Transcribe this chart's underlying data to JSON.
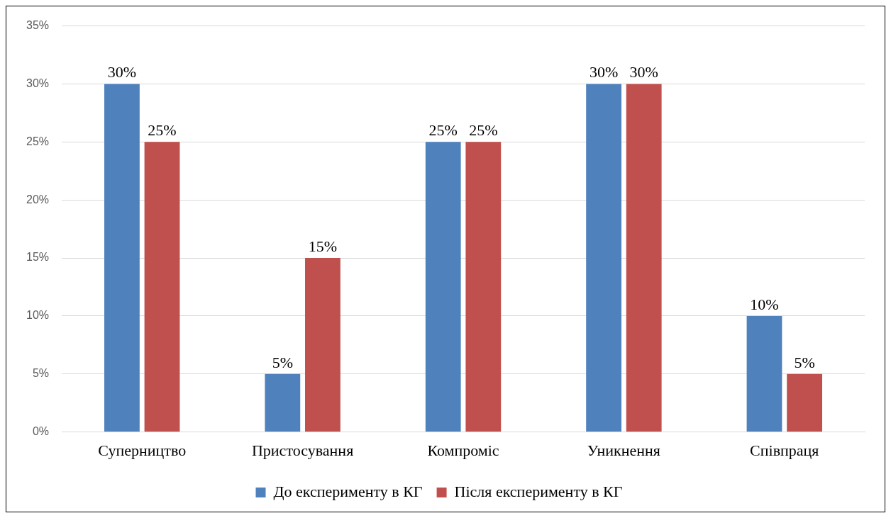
{
  "chart_data": {
    "type": "bar",
    "categories": [
      "Суперництво",
      "Пристосування",
      "Компроміс",
      "Уникнення",
      "Співпраця"
    ],
    "series": [
      {
        "name": "До експерименту в КГ",
        "color": "#4f81bd",
        "values": [
          30,
          5,
          25,
          30,
          10
        ],
        "value_labels": [
          "30%",
          "5%",
          "25%",
          "30%",
          "10%"
        ]
      },
      {
        "name": "Після експерименту в КГ",
        "color": "#c0504d",
        "values": [
          25,
          15,
          25,
          30,
          5
        ],
        "value_labels": [
          "25%",
          "15%",
          "25%",
          "30%",
          "5%"
        ]
      }
    ],
    "ylim": [
      0,
      35
    ],
    "yticks": [
      {
        "value": 0,
        "label": "0%"
      },
      {
        "value": 5,
        "label": "5%"
      },
      {
        "value": 10,
        "label": "10%"
      },
      {
        "value": 15,
        "label": "15%"
      },
      {
        "value": 20,
        "label": "20%"
      },
      {
        "value": 25,
        "label": "25%"
      },
      {
        "value": 30,
        "label": "30%"
      },
      {
        "value": 35,
        "label": "35%"
      }
    ],
    "grid": "y",
    "legend": "bottom"
  }
}
